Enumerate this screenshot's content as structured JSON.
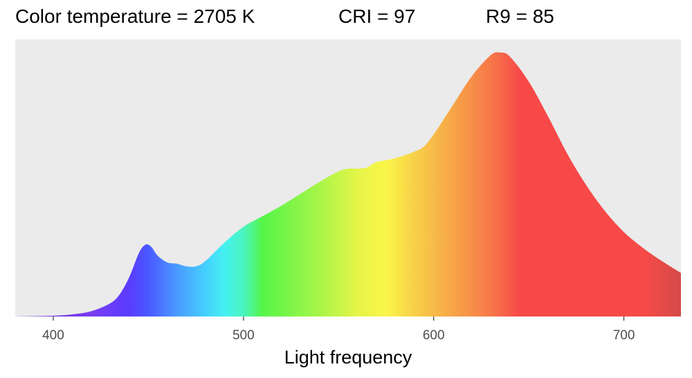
{
  "header": {
    "color_temperature": "Color temperature = 2705 K",
    "cri": "CRI = 97",
    "r9": "R9 = 85"
  },
  "chart_data": {
    "type": "area",
    "title": "",
    "xlabel": "Light frequency",
    "ylabel": "",
    "xlim": [
      380,
      730
    ],
    "ylim": [
      0,
      1.05
    ],
    "y_axis_shown": false,
    "grid": false,
    "panel_background": "#ebebeb",
    "x_ticks": [
      400,
      500,
      600,
      700
    ],
    "series": [
      {
        "x": [
          380,
          400,
          410,
          420,
          430,
          435,
          440,
          445,
          448,
          450,
          452,
          455,
          460,
          465,
          470,
          475,
          480,
          490,
          500,
          510,
          520,
          530,
          540,
          550,
          555,
          560,
          565,
          570,
          580,
          590,
          595,
          600,
          610,
          620,
          630,
          635,
          640,
          650,
          660,
          670,
          680,
          690,
          700,
          710,
          720,
          730
        ],
        "y": [
          0,
          0.003,
          0.008,
          0.02,
          0.05,
          0.085,
          0.15,
          0.24,
          0.27,
          0.272,
          0.26,
          0.23,
          0.205,
          0.2,
          0.19,
          0.19,
          0.21,
          0.28,
          0.34,
          0.38,
          0.42,
          0.465,
          0.51,
          0.55,
          0.56,
          0.56,
          0.565,
          0.585,
          0.6,
          0.625,
          0.645,
          0.69,
          0.8,
          0.91,
          0.99,
          1.0,
          0.985,
          0.89,
          0.76,
          0.62,
          0.5,
          0.4,
          0.32,
          0.26,
          0.21,
          0.165
        ]
      }
    ],
    "spectrum_gradient": [
      {
        "x": 380,
        "color": "#6a2fd6"
      },
      {
        "x": 420,
        "color": "#7a3cf0"
      },
      {
        "x": 440,
        "color": "#5a3cff"
      },
      {
        "x": 450,
        "color": "#4a58ff"
      },
      {
        "x": 465,
        "color": "#4a9aff"
      },
      {
        "x": 480,
        "color": "#45cfff"
      },
      {
        "x": 490,
        "color": "#45f0f0"
      },
      {
        "x": 500,
        "color": "#4af5c0"
      },
      {
        "x": 510,
        "color": "#55f548"
      },
      {
        "x": 540,
        "color": "#a8f548"
      },
      {
        "x": 560,
        "color": "#e5f548"
      },
      {
        "x": 575,
        "color": "#faf548"
      },
      {
        "x": 590,
        "color": "#f8d048"
      },
      {
        "x": 610,
        "color": "#f7a548"
      },
      {
        "x": 630,
        "color": "#f77848"
      },
      {
        "x": 645,
        "color": "#f74a48"
      },
      {
        "x": 710,
        "color": "#f74a48"
      },
      {
        "x": 730,
        "color": "#d44a48"
      }
    ]
  }
}
